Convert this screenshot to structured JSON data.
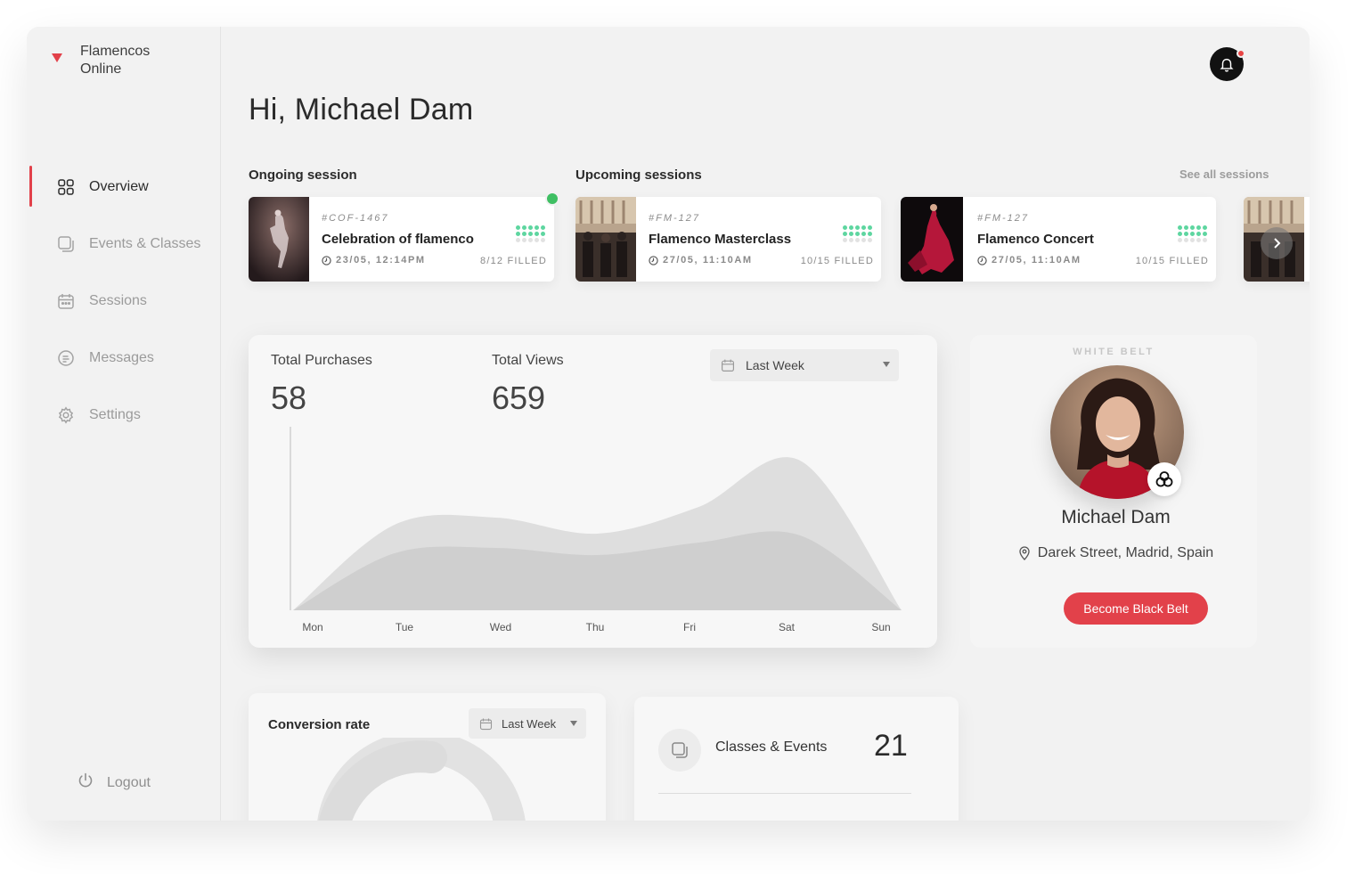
{
  "brand": {
    "name": "Flamencos Online"
  },
  "nav": {
    "items": [
      {
        "label": "Overview",
        "icon": "grid-icon",
        "active": true
      },
      {
        "label": "Events & Classes",
        "icon": "cards-icon",
        "active": false
      },
      {
        "label": "Sessions",
        "icon": "calendar-icon",
        "active": false
      },
      {
        "label": "Messages",
        "icon": "message-icon",
        "active": false
      },
      {
        "label": "Settings",
        "icon": "gear-icon",
        "active": false
      }
    ],
    "logout": "Logout"
  },
  "header": {
    "greeting": "Hi, Michael Dam",
    "notifications": "bell-icon"
  },
  "sessions": {
    "ongoing_title": "Ongoing session",
    "upcoming_title": "Upcoming sessions",
    "see_all": "See all sessions",
    "cards": [
      {
        "code": "#COF-1467",
        "title": "Celebration of flamenco",
        "date": "23/05, 12:14PM",
        "filled": "8/12 FILLED",
        "live": true,
        "filled_fraction": 0.667
      },
      {
        "code": "#FM-127",
        "title": "Flamenco Masterclass",
        "date": "27/05, 11:10AM",
        "filled": "10/15 FILLED",
        "live": false,
        "filled_fraction": 0.667
      },
      {
        "code": "#FM-127",
        "title": "Flamenco Concert",
        "date": "27/05, 11:10AM",
        "filled": "10/15 FILLED",
        "live": false,
        "filled_fraction": 0.667
      }
    ]
  },
  "stats": {
    "purchases_label": "Total Purchases",
    "purchases_value": "58",
    "views_label": "Total Views",
    "views_value": "659",
    "range": "Last Week"
  },
  "chart_data": {
    "type": "area",
    "categories": [
      "Mon",
      "Tue",
      "Wed",
      "Thu",
      "Fri",
      "Sat",
      "Sun"
    ],
    "series": [
      {
        "values": [
          0,
          0.48,
          0.52,
          0.43,
          0.58,
          0.84,
          0
        ]
      },
      {
        "values": [
          0,
          0.32,
          0.35,
          0.31,
          0.38,
          0.42,
          0
        ]
      }
    ],
    "xlabel": "",
    "ylabel": "",
    "grid": false,
    "colors": [
      "#dedede",
      "#cfcfcf"
    ]
  },
  "profile": {
    "belt": "WHITE BELT",
    "name": "Michael Dam",
    "location": "Darek Street, Madrid, Spain",
    "cta": "Become Black Belt"
  },
  "conversion": {
    "title": "Conversion rate",
    "range": "Last Week"
  },
  "classes_events": {
    "label": "Classes & Events",
    "value": "21"
  },
  "colors": {
    "accent": "#e2414a",
    "live": "#3fbf63",
    "dots": "#5ed6a0"
  }
}
